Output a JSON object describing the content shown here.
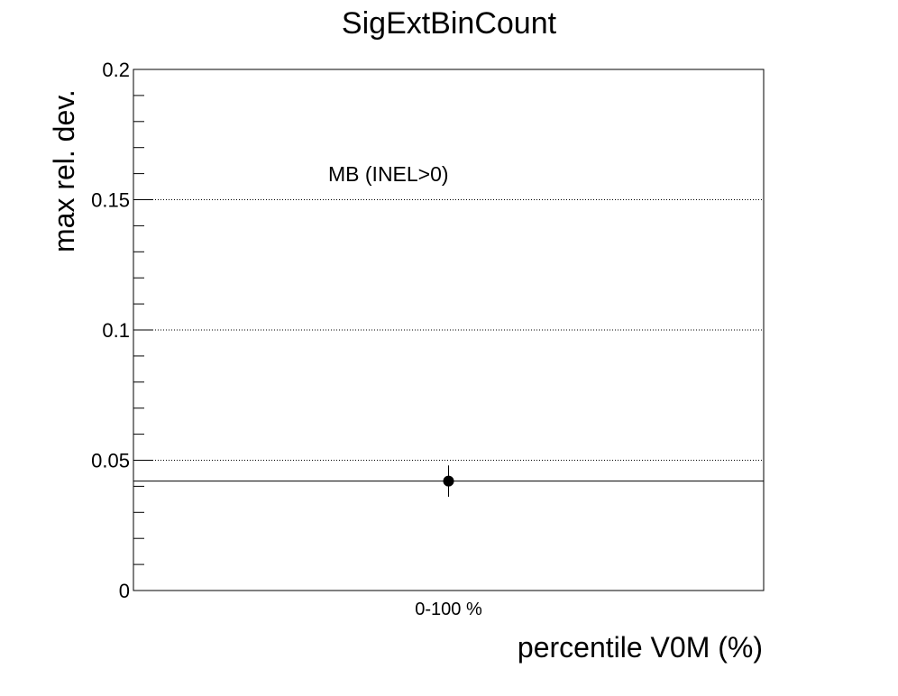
{
  "chart_data": {
    "type": "scatter",
    "title": "SigExtBinCount",
    "xlabel": "percentile V0M (%)",
    "ylabel": "max rel. dev.",
    "categories": [
      "0-100 %"
    ],
    "ylim": [
      0,
      0.2
    ],
    "yticks": [
      {
        "value": 0,
        "label": "0"
      },
      {
        "value": 0.05,
        "label": "0.05"
      },
      {
        "value": 0.1,
        "label": "0.1"
      },
      {
        "value": 0.15,
        "label": "0.15"
      },
      {
        "value": 0.2,
        "label": "0.2"
      }
    ],
    "y_minor_step": 0.01,
    "grid": "horizontal dotted at major ticks",
    "series": [
      {
        "category": "0-100 %",
        "value": 0.042,
        "err_low": 0.006,
        "err_high": 0.006
      }
    ],
    "reference_line": 0.042,
    "annotation": "MB (INEL>0)",
    "colors": {
      "marker": "#000000",
      "axes": "#000000",
      "background": "#ffffff"
    }
  }
}
